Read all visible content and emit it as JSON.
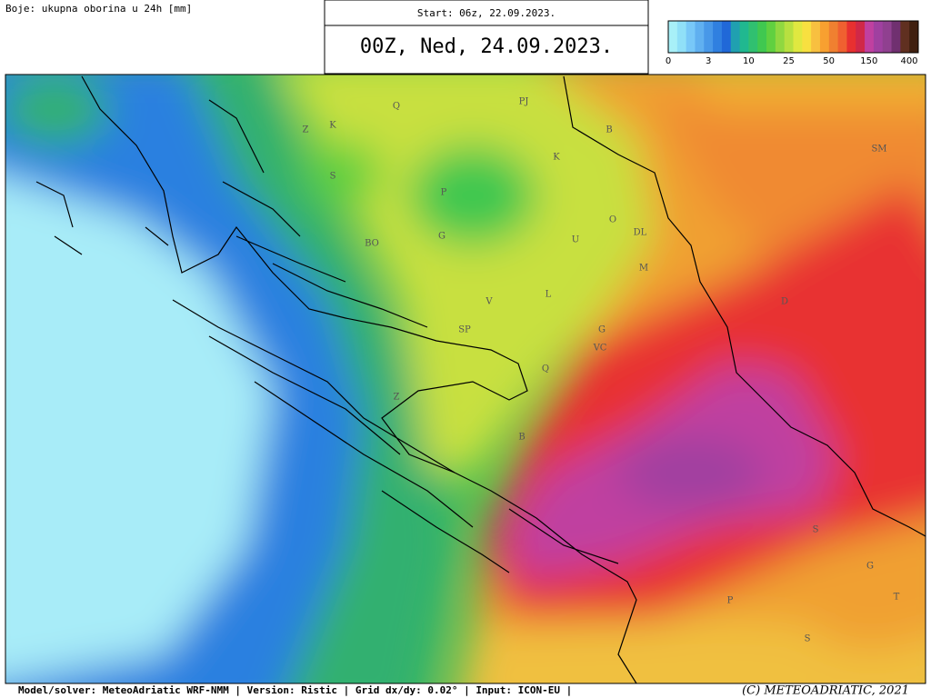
{
  "header": {
    "variable": "Boje: ukupna oborina u 24h [mm]",
    "start": "Start: 06z, 22.09.2023.",
    "valid": "00Z, Ned, 24.09.2023."
  },
  "legend": {
    "colors": [
      "#a8f0f8",
      "#90e0f8",
      "#78c8f8",
      "#60b0f0",
      "#4898e8",
      "#3080e0",
      "#2068d8",
      "#20a0b0",
      "#20b890",
      "#30c070",
      "#40c850",
      "#60d040",
      "#90d840",
      "#b8e040",
      "#e0e840",
      "#f8e040",
      "#f8c040",
      "#f8a030",
      "#f08030",
      "#f06030",
      "#e83030",
      "#d02848",
      "#c040a0",
      "#a040a0",
      "#904090",
      "#703070",
      "#603020",
      "#402010"
    ],
    "ticks": [
      0,
      3,
      10,
      25,
      50,
      150,
      400
    ]
  },
  "map": {
    "labels": [
      "K",
      "Q",
      "Z",
      "S",
      "P",
      "G",
      "BO",
      "PJ",
      "B",
      "K",
      "O",
      "U",
      "DL",
      "M",
      "L",
      "V",
      "SP",
      "G",
      "VC",
      "Q",
      "Z",
      "B",
      "SM",
      "D",
      "S",
      "G",
      "T",
      "P",
      "S"
    ]
  },
  "footer": {
    "info": "Model/solver: MeteoAdriatic WRF-NMM | Version: Ristic | Grid dx/dy: 0.02° | Input: ICON-EU |",
    "copyright": "(C) METEOADRIATIC, 2021"
  }
}
